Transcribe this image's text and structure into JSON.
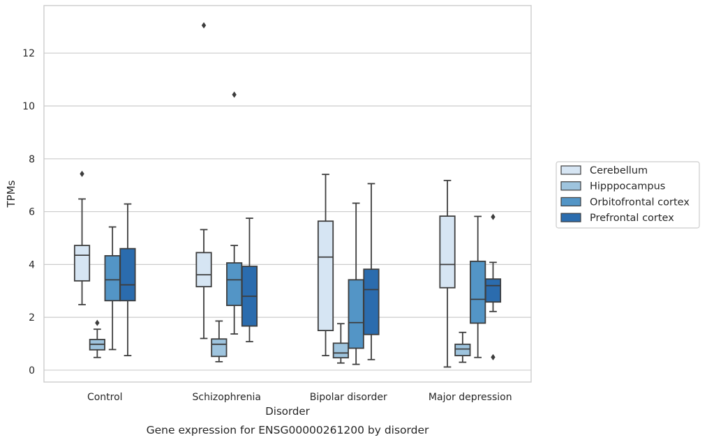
{
  "chart_data": {
    "type": "box",
    "title": "",
    "caption": "Gene expression for ENSG00000261200 by disorder",
    "xlabel": "Disorder",
    "ylabel": "TPMs",
    "ylim": [
      -0.45,
      13.8
    ],
    "yticks": [
      0,
      2,
      4,
      6,
      8,
      10,
      12
    ],
    "grid": "horizontal",
    "legend_position": "right",
    "categories": [
      "Control",
      "Schizophrenia",
      "Bipolar disorder",
      "Major depression"
    ],
    "series": [
      {
        "name": "Cerebellum",
        "color": "#d6e5f3",
        "boxes": [
          {
            "whisker_low": 2.48,
            "q1": 3.38,
            "median": 4.35,
            "q3": 4.72,
            "whisker_high": 6.48,
            "outliers": [
              7.43
            ]
          },
          {
            "whisker_low": 1.2,
            "q1": 3.16,
            "median": 3.61,
            "q3": 4.45,
            "whisker_high": 5.32,
            "outliers": [
              13.05
            ]
          },
          {
            "whisker_low": 0.55,
            "q1": 1.5,
            "median": 4.28,
            "q3": 5.64,
            "whisker_high": 7.41,
            "outliers": []
          },
          {
            "whisker_low": 0.12,
            "q1": 3.12,
            "median": 4.0,
            "q3": 5.83,
            "whisker_high": 7.18,
            "outliers": []
          }
        ]
      },
      {
        "name": "Hipppocampus",
        "color": "#9ec4de",
        "boxes": [
          {
            "whisker_low": 0.48,
            "q1": 0.77,
            "median": 0.98,
            "q3": 1.16,
            "whisker_high": 1.55,
            "outliers": [
              1.79
            ]
          },
          {
            "whisker_low": 0.32,
            "q1": 0.52,
            "median": 0.98,
            "q3": 1.18,
            "whisker_high": 1.86,
            "outliers": []
          },
          {
            "whisker_low": 0.27,
            "q1": 0.47,
            "median": 0.65,
            "q3": 1.02,
            "whisker_high": 1.76,
            "outliers": []
          },
          {
            "whisker_low": 0.3,
            "q1": 0.55,
            "median": 0.8,
            "q3": 0.98,
            "whisker_high": 1.43,
            "outliers": []
          }
        ]
      },
      {
        "name": "Orbitofrontal cortex",
        "color": "#5395c6",
        "boxes": [
          {
            "whisker_low": 0.78,
            "q1": 2.63,
            "median": 3.42,
            "q3": 4.33,
            "whisker_high": 5.42,
            "outliers": []
          },
          {
            "whisker_low": 1.37,
            "q1": 2.45,
            "median": 3.42,
            "q3": 4.06,
            "whisker_high": 4.72,
            "outliers": [
              10.43
            ]
          },
          {
            "whisker_low": 0.22,
            "q1": 0.83,
            "median": 1.8,
            "q3": 3.42,
            "whisker_high": 6.32,
            "outliers": []
          },
          {
            "whisker_low": 0.48,
            "q1": 1.78,
            "median": 2.68,
            "q3": 4.12,
            "whisker_high": 5.82,
            "outliers": []
          }
        ]
      },
      {
        "name": "Prefrontal cortex",
        "color": "#2b6cae",
        "boxes": [
          {
            "whisker_low": 0.55,
            "q1": 2.63,
            "median": 3.23,
            "q3": 4.6,
            "whisker_high": 6.29,
            "outliers": []
          },
          {
            "whisker_low": 1.08,
            "q1": 1.67,
            "median": 2.8,
            "q3": 3.93,
            "whisker_high": 5.75,
            "outliers": []
          },
          {
            "whisker_low": 0.4,
            "q1": 1.35,
            "median": 3.05,
            "q3": 3.82,
            "whisker_high": 7.06,
            "outliers": []
          },
          {
            "whisker_low": 2.22,
            "q1": 2.58,
            "median": 3.2,
            "q3": 3.45,
            "whisker_high": 4.08,
            "outliers": [
              5.8,
              0.49
            ]
          }
        ]
      }
    ]
  }
}
